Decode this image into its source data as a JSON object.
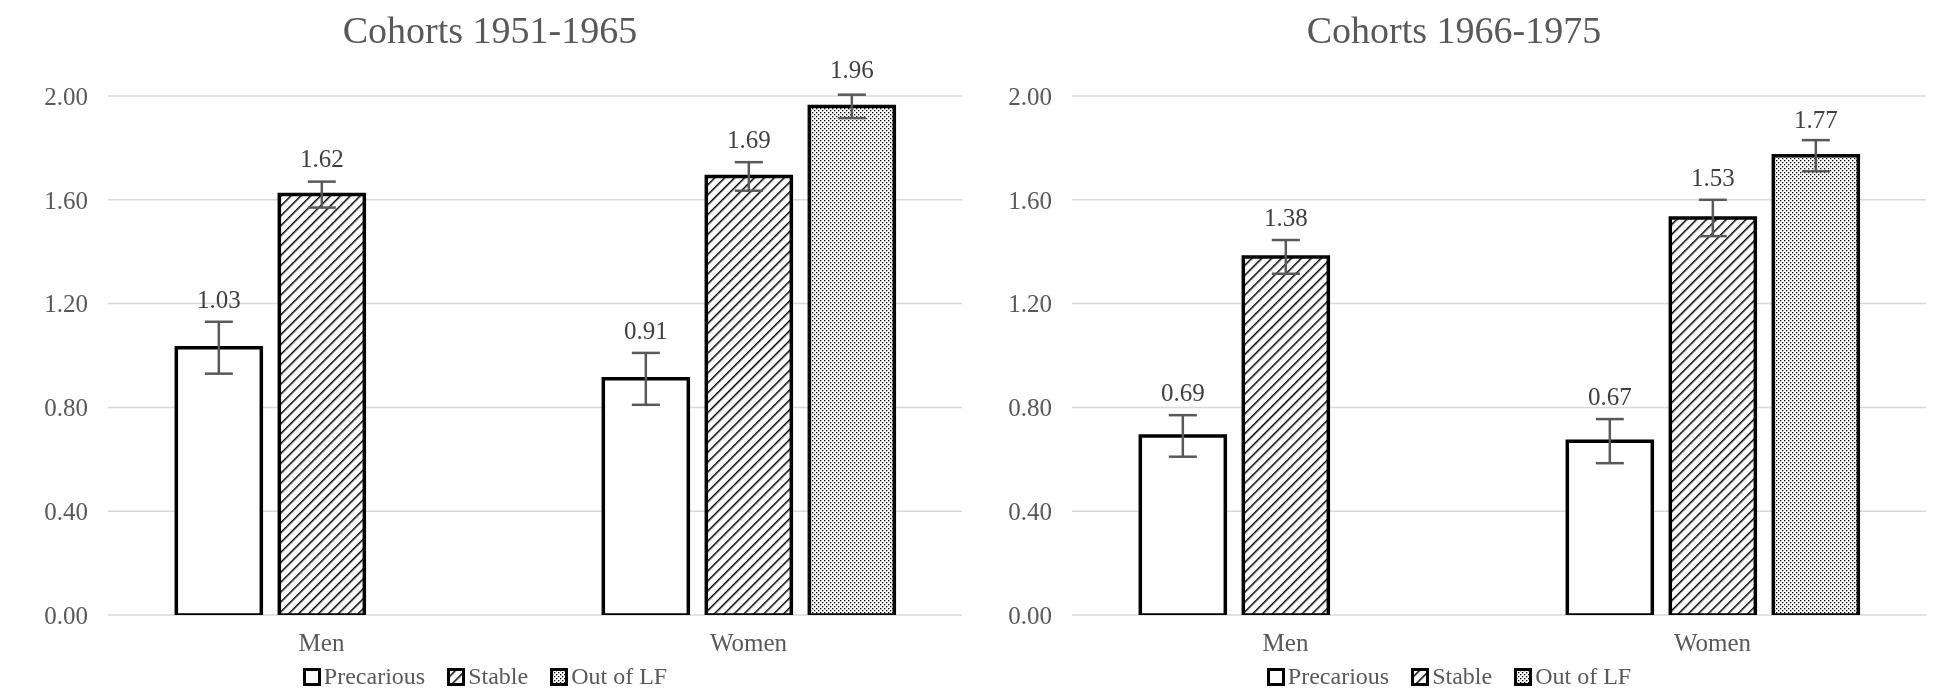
{
  "chart_data": [
    {
      "type": "bar",
      "title": "Cohorts 1951-1965",
      "categories": [
        "Men",
        "Women"
      ],
      "ylim": [
        0,
        2
      ],
      "yticks": [
        {
          "value": 0,
          "label": "0.00"
        },
        {
          "value": 0.4,
          "label": "0.40"
        },
        {
          "value": 0.8,
          "label": "0.80"
        },
        {
          "value": 1.2,
          "label": "1.20"
        },
        {
          "value": 1.6,
          "label": "1.60"
        },
        {
          "value": 2,
          "label": "2.00"
        }
      ],
      "grid": "y",
      "legend": "bottom",
      "data_labels": true,
      "series": [
        {
          "name": "Precarious",
          "color": "#ffffff",
          "values": [
            1.03,
            0.91
          ],
          "errors": [
            0.1,
            0.1
          ]
        },
        {
          "name": "Stable",
          "color": "#000000",
          "values": [
            1.62,
            1.69
          ],
          "errors": [
            0.05,
            0.055
          ]
        },
        {
          "name": "Out of LF",
          "color": "#000000",
          "values": [
            null,
            1.96
          ],
          "errors": [
            null,
            0.045
          ]
        }
      ]
    },
    {
      "type": "bar",
      "title": "Cohorts 1966-1975",
      "categories": [
        "Men",
        "Women"
      ],
      "ylim": [
        0,
        2
      ],
      "yticks": [
        {
          "value": 0,
          "label": "0.00"
        },
        {
          "value": 0.4,
          "label": "0.40"
        },
        {
          "value": 0.8,
          "label": "0.80"
        },
        {
          "value": 1.2,
          "label": "1.20"
        },
        {
          "value": 1.6,
          "label": "1.60"
        },
        {
          "value": 2,
          "label": "2.00"
        }
      ],
      "grid": "y",
      "legend": "bottom",
      "data_labels": true,
      "series": [
        {
          "name": "Precarious",
          "color": "#ffffff",
          "values": [
            0.69,
            0.67
          ],
          "errors": [
            0.08,
            0.085
          ]
        },
        {
          "name": "Stable",
          "color": "#000000",
          "values": [
            1.38,
            1.53
          ],
          "errors": [
            0.065,
            0.07
          ]
        },
        {
          "name": "Out of LF",
          "color": "#000000",
          "values": [
            null,
            1.77
          ],
          "errors": [
            null,
            0.06
          ]
        }
      ]
    }
  ]
}
